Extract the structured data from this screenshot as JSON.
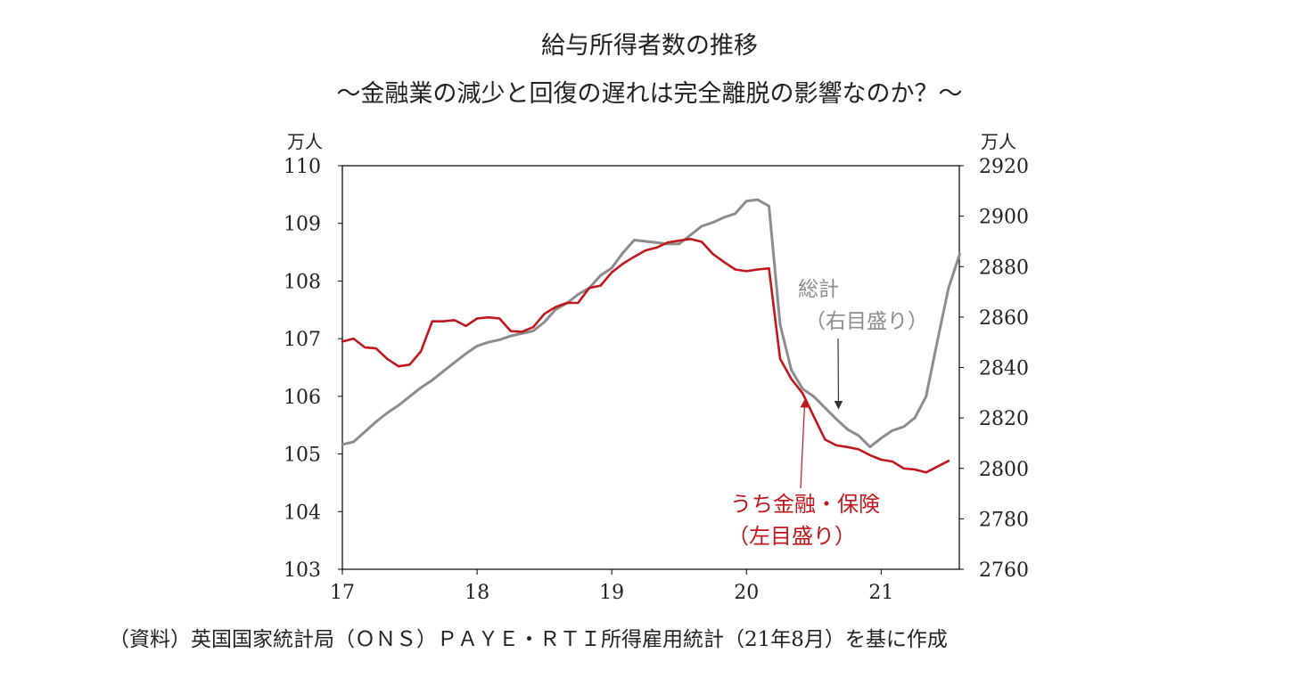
{
  "title_main": "給与所得者数の推移",
  "title_sub": "～金融業の減少と回復の遅れは完全離脱の影響なのか？～",
  "source_note": "（資料）英国国家統計局（ＯＮＳ）ＰＡＹＥ・ＲＴＩ所得雇用統計（21年8月）を基に作成",
  "chart_data": {
    "type": "line",
    "title": "給与所得者数の推移",
    "subtitle": "～金融業の減少と回復の遅れは完全離脱の影響なのか？～",
    "x_ticks": [
      2017,
      2018,
      2019,
      2020,
      2021
    ],
    "x_tick_labels": [
      "17",
      "18",
      "19",
      "20",
      "21"
    ],
    "xlim": [
      2017,
      2021.58
    ],
    "left_axis": {
      "unit": "万人",
      "ylim": [
        103,
        110
      ],
      "ticks": [
        103,
        104,
        105,
        106,
        107,
        108,
        109,
        110
      ]
    },
    "right_axis": {
      "unit": "万人",
      "ylim": [
        2760,
        2920
      ],
      "ticks": [
        2760,
        2780,
        2800,
        2820,
        2840,
        2860,
        2880,
        2900,
        2920
      ]
    },
    "series": [
      {
        "name": "うち金融・保険",
        "axis_note": "（左目盛り）",
        "axis": "left",
        "color": "#c0161c",
        "x": [
          2017.0,
          2017.083,
          2017.167,
          2017.25,
          2017.333,
          2017.417,
          2017.5,
          2017.583,
          2017.667,
          2017.75,
          2017.833,
          2017.917,
          2018.0,
          2018.083,
          2018.167,
          2018.25,
          2018.333,
          2018.417,
          2018.5,
          2018.583,
          2018.667,
          2018.75,
          2018.833,
          2018.917,
          2019.0,
          2019.083,
          2019.167,
          2019.25,
          2019.333,
          2019.417,
          2019.5,
          2019.583,
          2019.667,
          2019.75,
          2019.833,
          2019.917,
          2020.0,
          2020.083,
          2020.167,
          2020.25,
          2020.333,
          2020.417,
          2020.5,
          2020.583,
          2020.667,
          2020.75,
          2020.833,
          2020.917,
          2021.0,
          2021.083,
          2021.167,
          2021.25,
          2021.333,
          2021.417,
          2021.5
        ],
        "values": [
          106.95,
          107.0,
          106.85,
          106.83,
          106.65,
          106.52,
          106.55,
          106.78,
          107.3,
          107.3,
          107.32,
          107.22,
          107.35,
          107.37,
          107.35,
          107.13,
          107.12,
          107.2,
          107.43,
          107.55,
          107.62,
          107.62,
          107.88,
          107.92,
          108.15,
          108.3,
          108.42,
          108.53,
          108.58,
          108.67,
          108.7,
          108.73,
          108.68,
          108.47,
          108.33,
          108.2,
          108.17,
          108.2,
          108.22,
          106.65,
          106.3,
          106.05,
          105.65,
          105.25,
          105.15,
          105.12,
          105.08,
          104.98,
          104.9,
          104.87,
          104.75,
          104.73,
          104.68,
          104.78,
          104.88
        ]
      },
      {
        "name": "総計",
        "axis_note": "（右目盛り）",
        "axis": "right",
        "color": "#8c8c8c",
        "x": [
          2017.0,
          2017.083,
          2017.167,
          2017.25,
          2017.333,
          2017.417,
          2017.5,
          2017.583,
          2017.667,
          2017.75,
          2017.833,
          2017.917,
          2018.0,
          2018.083,
          2018.167,
          2018.25,
          2018.333,
          2018.417,
          2018.5,
          2018.583,
          2018.667,
          2018.75,
          2018.833,
          2018.917,
          2019.0,
          2019.083,
          2019.167,
          2019.25,
          2019.333,
          2019.417,
          2019.5,
          2019.583,
          2019.667,
          2019.75,
          2019.833,
          2019.917,
          2020.0,
          2020.083,
          2020.167,
          2020.25,
          2020.333,
          2020.417,
          2020.5,
          2020.583,
          2020.667,
          2020.75,
          2020.833,
          2020.917,
          2021.0,
          2021.083,
          2021.167,
          2021.25,
          2021.333,
          2021.417,
          2021.5,
          2021.583
        ],
        "values": [
          2809.5,
          2810.5,
          2814.5,
          2818.5,
          2822,
          2825,
          2828.5,
          2832,
          2835,
          2838.5,
          2842,
          2845.5,
          2848.5,
          2850,
          2851,
          2852.5,
          2853.5,
          2854.5,
          2858,
          2863,
          2865.5,
          2869,
          2871.5,
          2876.5,
          2879.5,
          2885.5,
          2890.5,
          2890,
          2889.5,
          2889,
          2889,
          2892.5,
          2896,
          2897.5,
          2899.5,
          2901,
          2906,
          2906.5,
          2904,
          2857,
          2839,
          2831.5,
          2828.5,
          2824,
          2819.5,
          2815.5,
          2813,
          2808.5,
          2812,
          2815,
          2816.5,
          2820,
          2828.5,
          2850.5,
          2871.5,
          2885
        ]
      }
    ],
    "annotations": [
      {
        "series": "総計",
        "text": "総計",
        "sub": "（右目盛り）",
        "arrow_to": [
          2020.67,
          2823
        ]
      },
      {
        "series": "うち金融・保険",
        "text": "うち金融・保険",
        "sub": "（左目盛り）",
        "arrow_to": [
          2020.42,
          106.0
        ]
      }
    ],
    "grid": false,
    "legend": "none"
  }
}
